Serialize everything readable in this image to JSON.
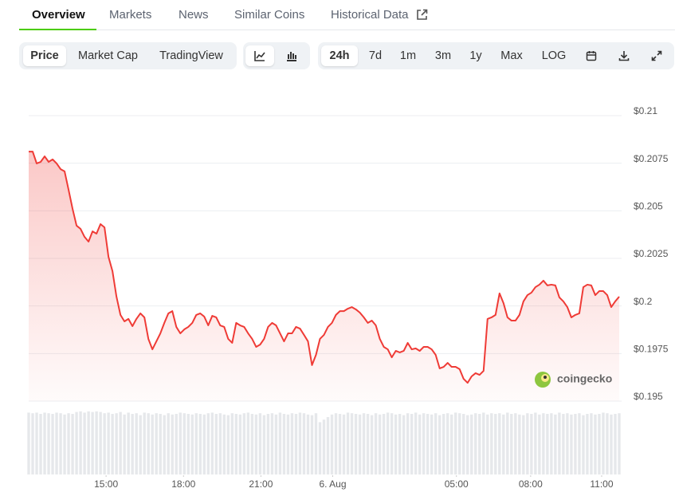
{
  "tabs": {
    "items": [
      "Overview",
      "Markets",
      "News",
      "Similar Coins",
      "Historical Data"
    ],
    "active": 0
  },
  "chart_buttons": {
    "items": [
      "Price",
      "Market Cap",
      "TradingView"
    ],
    "active": 0
  },
  "range_buttons": {
    "items": [
      "24h",
      "7d",
      "1m",
      "3m",
      "1y",
      "Max",
      "LOG"
    ],
    "active": 0
  },
  "chart_data": {
    "type": "line",
    "watermark": "coingecko",
    "grid": true,
    "ylim": [
      0.195,
      0.21
    ],
    "yticks": [
      {
        "value": 0.21,
        "label": "$0.21"
      },
      {
        "value": 0.2075,
        "label": "$0.2075"
      },
      {
        "value": 0.205,
        "label": "$0.205"
      },
      {
        "value": 0.2025,
        "label": "$0.2025"
      },
      {
        "value": 0.2,
        "label": "$0.2"
      },
      {
        "value": 0.1975,
        "label": "$0.1975"
      },
      {
        "value": 0.195,
        "label": "$0.195"
      }
    ],
    "xlim": [
      0,
      148
    ],
    "xticks": [
      {
        "value": 19.4,
        "label": "15:00"
      },
      {
        "value": 38.8,
        "label": "18:00"
      },
      {
        "value": 58.2,
        "label": "21:00"
      },
      {
        "value": 76.2,
        "label": "6. Aug"
      },
      {
        "value": 107.2,
        "label": "05:00"
      },
      {
        "value": 125.8,
        "label": "08:00"
      },
      {
        "value": 143.6,
        "label": "11:00"
      }
    ],
    "series": [
      {
        "color": "#ef3b36",
        "values": [
          0.20811,
          0.20811,
          0.20749,
          0.20757,
          0.20786,
          0.20757,
          0.2077,
          0.20749,
          0.20719,
          0.20707,
          0.2061,
          0.2051,
          0.20422,
          0.20405,
          0.20363,
          0.20338,
          0.20392,
          0.2038,
          0.2043,
          0.20413,
          0.20258,
          0.20183,
          0.20049,
          0.19953,
          0.19919,
          0.19932,
          0.19894,
          0.19932,
          0.19961,
          0.1994,
          0.19827,
          0.19772,
          0.19814,
          0.19856,
          0.19911,
          0.19961,
          0.19973,
          0.1989,
          0.19856,
          0.19877,
          0.1989,
          0.19911,
          0.19953,
          0.19961,
          0.19944,
          0.19898,
          0.19948,
          0.1994,
          0.19898,
          0.1989,
          0.19827,
          0.19806,
          0.19911,
          0.19898,
          0.1989,
          0.19856,
          0.19827,
          0.19785,
          0.19797,
          0.19827,
          0.1989,
          0.19911,
          0.19898,
          0.19856,
          0.19814,
          0.19856,
          0.19856,
          0.1989,
          0.19881,
          0.19848,
          0.19814,
          0.19689,
          0.19743,
          0.19827,
          0.19848,
          0.1989,
          0.19911,
          0.19953,
          0.19973,
          0.19973,
          0.19986,
          0.19994,
          0.19982,
          0.19965,
          0.1994,
          0.19911,
          0.19923,
          0.19898,
          0.19827,
          0.19785,
          0.19772,
          0.1973,
          0.19764,
          0.19756,
          0.19764,
          0.19806,
          0.19772,
          0.19777,
          0.19764,
          0.19785,
          0.19785,
          0.19772,
          0.19743,
          0.19672,
          0.1968,
          0.19701,
          0.1968,
          0.1968,
          0.19668,
          0.19617,
          0.19596,
          0.1963,
          0.19647,
          0.19638,
          0.19659,
          0.19932,
          0.1994,
          0.19953,
          0.20066,
          0.20015,
          0.1994,
          0.19923,
          0.19923,
          0.19953,
          0.20024,
          0.20057,
          0.2007,
          0.20099,
          0.20112,
          0.20133,
          0.20108,
          0.20112,
          0.20108,
          0.20045,
          0.20024,
          0.19994,
          0.1994,
          0.19953,
          0.19961,
          0.20099,
          0.20112,
          0.20108,
          0.20057,
          0.20078,
          0.20078,
          0.20057,
          0.19994,
          0.20024,
          0.20049
        ]
      }
    ],
    "volume": {
      "color": "#e6e8eb",
      "vlim": [
        0,
        100
      ],
      "values": [
        97,
        96,
        97,
        95,
        97,
        96,
        95,
        97,
        96,
        94,
        96,
        95,
        98,
        99,
        97,
        99,
        98,
        99,
        98,
        96,
        97,
        95,
        96,
        98,
        94,
        97,
        95,
        96,
        93,
        97,
        96,
        94,
        96,
        95,
        93,
        96,
        94,
        95,
        97,
        96,
        95,
        94,
        96,
        95,
        94,
        96,
        97,
        95,
        96,
        94,
        93,
        96,
        95,
        94,
        96,
        97,
        95,
        94,
        96,
        93,
        95,
        96,
        94,
        97,
        95,
        94,
        96,
        95,
        97,
        96,
        94,
        93,
        96,
        82,
        86,
        90,
        94,
        96,
        95,
        94,
        97,
        96,
        95,
        94,
        96,
        95,
        93,
        96,
        94,
        95,
        97,
        96,
        94,
        95,
        93,
        96,
        95,
        97,
        94,
        96,
        95,
        94,
        96,
        93,
        95,
        96,
        94,
        97,
        96,
        95,
        93,
        94,
        96,
        95,
        97,
        94,
        96,
        95,
        96,
        94,
        97,
        95,
        96,
        94,
        93,
        96,
        95,
        97,
        94,
        96,
        95,
        96,
        94,
        97,
        95,
        96,
        94,
        95,
        96,
        93,
        95,
        96,
        94,
        95,
        97,
        96,
        94,
        95,
        96
      ]
    }
  }
}
